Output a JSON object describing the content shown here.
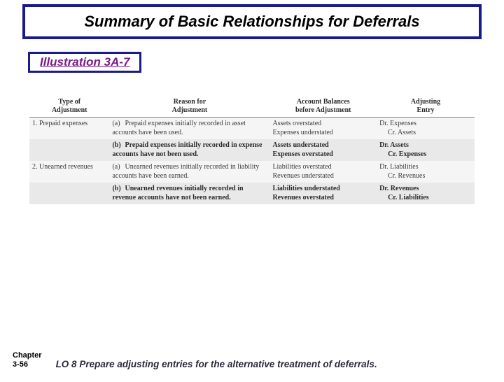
{
  "title": "Summary of Basic Relationships for Deferrals",
  "illustration": "Illustration 3A-7",
  "table": {
    "headers": {
      "type": "Type of\nAdjustment",
      "reason": "Reason for\nAdjustment",
      "balances": "Account Balances\nbefore Adjustment",
      "entry": "Adjusting\nEntry"
    },
    "rows": [
      {
        "type": "1.  Prepaid expenses",
        "sub": "(a)",
        "reason": "Prepaid expenses initially recorded in asset accounts have been used.",
        "bal1": "Assets overstated",
        "bal2": "Expenses understated",
        "entry1": "Dr. Expenses",
        "entry2": "Cr. Assets",
        "bold": false
      },
      {
        "type": "",
        "sub": "(b)",
        "reason": "Prepaid expenses initially recorded in expense accounts have not been used.",
        "bal1": "Assets understated",
        "bal2": "Expenses overstated",
        "entry1": "Dr. Assets",
        "entry2": "Cr. Expenses",
        "bold": true
      },
      {
        "type": "2.  Unearned revenues",
        "sub": "(a)",
        "reason": "Unearned revenues initially recorded in liability accounts have been earned.",
        "bal1": "Liabilities overstated",
        "bal2": "Revenues understated",
        "entry1": "Dr. Liabilities",
        "entry2": "Cr. Revenues",
        "bold": false
      },
      {
        "type": "",
        "sub": "(b)",
        "reason": "Unearned revenues initially recorded in revenue accounts have not been earned.",
        "bal1": "Liabilities understated",
        "bal2": "Revenues overstated",
        "entry1": "Dr. Revenues",
        "entry2": "Cr. Liabilities",
        "bold": true
      }
    ]
  },
  "chapter_line1": "Chapter",
  "chapter_line2": "3-56",
  "lo": "LO 8  Prepare adjusting entries for the alternative treatment of deferrals.",
  "colors": {
    "border_navy": "#1a1a8a",
    "illus_text": "#7a1a8a",
    "row_a_bg": "#f5f5f5",
    "row_b_bg": "#e9e9e9",
    "header_rule": "#808080"
  }
}
